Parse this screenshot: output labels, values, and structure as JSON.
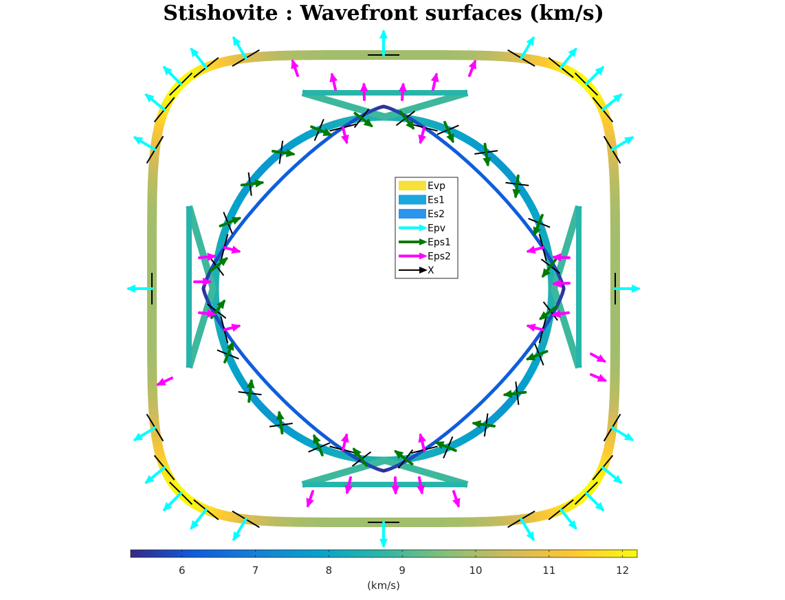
{
  "title": "Stishovite : Wavefront surfaces (km/s)",
  "chart_data": {
    "type": "wavefront-surface",
    "title": "Stishovite : Wavefront surfaces (km/s)",
    "colormap": "parula",
    "series": [
      {
        "name": "Evp",
        "kind": "wavefront",
        "velocity_range_kms": [
          9.9,
          12.2
        ],
        "swatch_color": "#f7e03a"
      },
      {
        "name": "Es1",
        "kind": "wavefront",
        "velocity_range_kms": [
          7.6,
          9.3
        ],
        "swatch_color": "#1aa6df"
      },
      {
        "name": "Es2",
        "kind": "wavefront",
        "velocity_range_kms": [
          5.3,
          8.0
        ],
        "swatch_color": "#2b95ee"
      },
      {
        "name": "Epv",
        "kind": "polarization-arrow",
        "swatch_color": "#00ffff"
      },
      {
        "name": "Eps1",
        "kind": "polarization-arrow",
        "swatch_color": "#007a00"
      },
      {
        "name": "Eps2",
        "kind": "polarization-arrow",
        "swatch_color": "#ff00ff"
      },
      {
        "name": "X",
        "kind": "polarization-arrow",
        "swatch_color": "#000000"
      }
    ],
    "legend": {
      "placement": "center",
      "entries": [
        "Evp",
        "Es1",
        "Es2",
        "Epv",
        "Eps1",
        "Eps2",
        "X"
      ]
    },
    "colorbar": {
      "label": "(km/s)",
      "range": [
        5.3,
        12.2
      ],
      "ticks": [
        6,
        7,
        8,
        9,
        10,
        11,
        12
      ],
      "tick_labels": [
        "6",
        "7",
        "8",
        "9",
        "10",
        "11",
        "12"
      ],
      "stops": [
        "#352a87",
        "#0f5cdd",
        "#1481d6",
        "#06a4ca",
        "#2eb7a4",
        "#87bf77",
        "#d1bb59",
        "#fec832",
        "#f9fb0e"
      ]
    }
  }
}
